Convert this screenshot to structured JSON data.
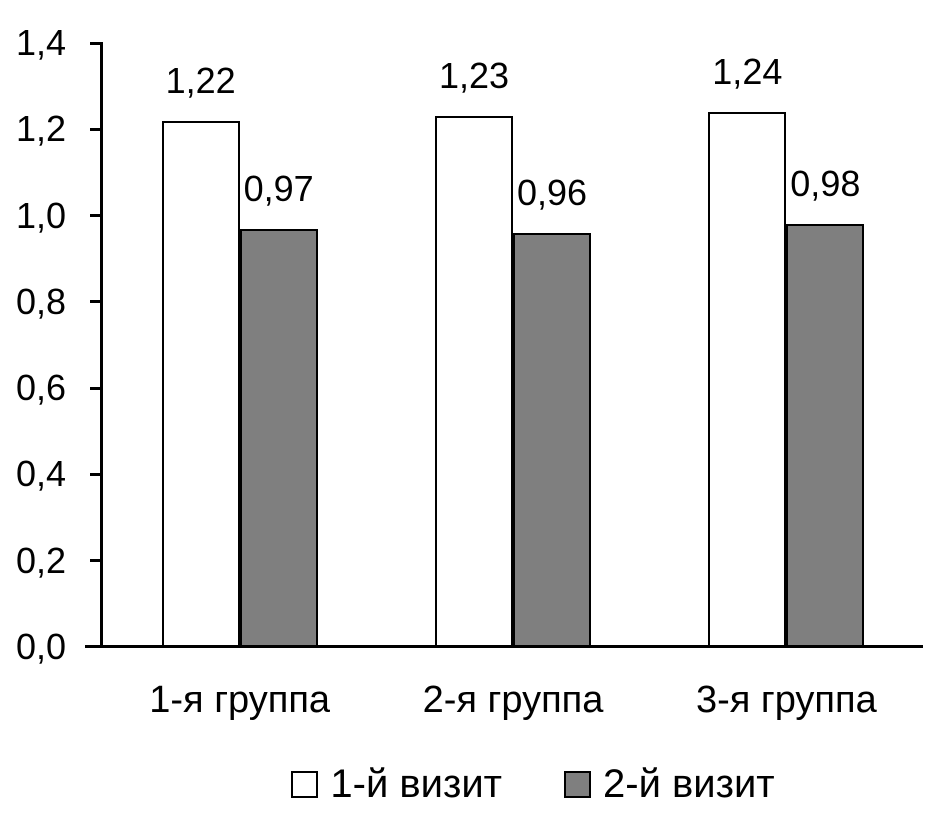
{
  "chart_data": {
    "type": "bar",
    "categories": [
      "1-я группа",
      "2-я группа",
      "3-я группа"
    ],
    "series": [
      {
        "name": "1-й визит",
        "values": [
          1.22,
          1.23,
          1.24
        ],
        "value_labels": [
          "1,22",
          "1,23",
          "1,24"
        ],
        "fill": "#ffffff",
        "border": "#000000"
      },
      {
        "name": "2-й визит",
        "values": [
          0.97,
          0.96,
          0.98
        ],
        "value_labels": [
          "0,97",
          "0,96",
          "0,98"
        ],
        "fill": "#7f7f7f",
        "border": "#000000"
      }
    ],
    "ylim": [
      0,
      1.4
    ],
    "yticks": [
      {
        "value": 0.0,
        "label": "0,0"
      },
      {
        "value": 0.2,
        "label": "0,2"
      },
      {
        "value": 0.4,
        "label": "0,4"
      },
      {
        "value": 0.6,
        "label": "0,6"
      },
      {
        "value": 0.8,
        "label": "0,8"
      },
      {
        "value": 1.0,
        "label": "1,0"
      },
      {
        "value": 1.2,
        "label": "1,2"
      },
      {
        "value": 1.4,
        "label": "1,4"
      }
    ],
    "xlabel": "",
    "ylabel": "",
    "grid": false,
    "legend_position": "bottom",
    "axis_color": "#000000",
    "text_color": "#000000"
  }
}
